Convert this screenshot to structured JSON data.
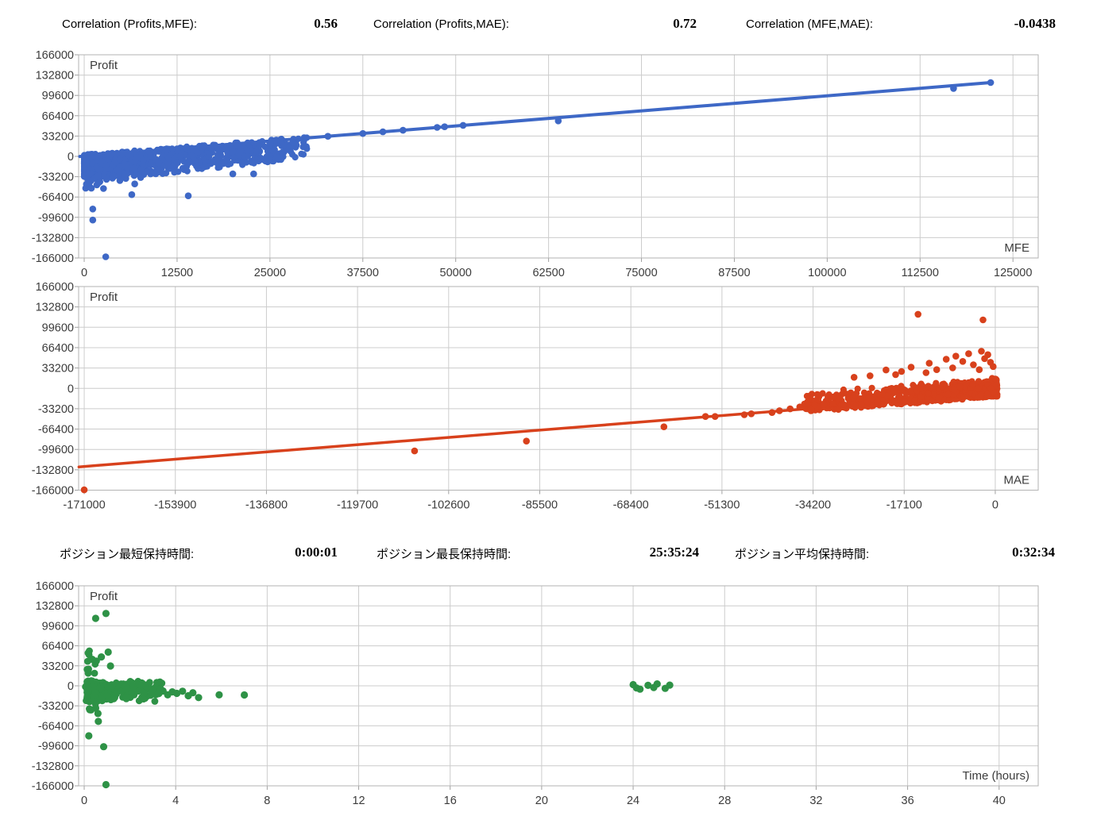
{
  "stats_correlation": {
    "items": [
      {
        "label": "Correlation (Profits,MFE):",
        "value": "0.56"
      },
      {
        "label": "Correlation (Profits,MAE):",
        "value": "0.72"
      },
      {
        "label": "Correlation (MFE,MAE):",
        "value": "-0.0438"
      }
    ]
  },
  "stats_holding_time": {
    "items": [
      {
        "label": "ポジション最短保持時間:",
        "value": "0:00:01"
      },
      {
        "label": "ポジション最長保持時間:",
        "value": "25:35:24"
      },
      {
        "label": "ポジション平均保持時間:",
        "value": "0:32:34"
      }
    ]
  },
  "chart_data": [
    {
      "type": "scatter",
      "series_label": "Profit",
      "axis_label": "MFE",
      "color": "#3E68C6",
      "grid_color": "#cccccc",
      "border_color": "#b3b3b3",
      "tick_color": "#a0a0a0",
      "label_color": "#3c3c3c",
      "x_ticks": [
        0,
        12500,
        25000,
        37500,
        50000,
        62500,
        75000,
        87500,
        100000,
        112500,
        125000
      ],
      "y_ticks": [
        166000,
        132800,
        99600,
        66400,
        33200,
        0,
        -33200,
        -66400,
        -99600,
        -132800,
        -166000
      ],
      "xlim": [
        -750,
        128400
      ],
      "ylim": [
        -166000,
        166000
      ],
      "trend": {
        "x1": -600,
        "y1": -100,
        "x2": 122000,
        "y2": 120600,
        "width": 4
      },
      "cluster": [
        {
          "gen": "wedge_pos",
          "count": 1000,
          "seed": 11,
          "xmax": 30000,
          "xpow": 2.3,
          "top_jitter": 2600,
          "spread_a": 46000,
          "spread_b": 0.45,
          "spread_min": 6000,
          "ypow": 1.3,
          "floor": -33200
        }
      ],
      "points": [
        [
          26400,
          26500
        ],
        [
          32800,
          32800
        ],
        [
          37500,
          37400
        ],
        [
          40200,
          40100
        ],
        [
          42900,
          42700
        ],
        [
          47500,
          47400
        ],
        [
          48500,
          48400
        ],
        [
          51000,
          50700
        ],
        [
          63800,
          58000
        ],
        [
          117000,
          111000
        ],
        [
          122000,
          120600
        ],
        [
          300,
          -45500
        ],
        [
          1700,
          -46500
        ],
        [
          200,
          -52000
        ],
        [
          960,
          -52000
        ],
        [
          2600,
          -52500
        ],
        [
          6400,
          -62500
        ],
        [
          14000,
          -64500
        ],
        [
          1150,
          -86000
        ],
        [
          1150,
          -104000
        ],
        [
          2900,
          -164000
        ],
        [
          20000,
          -28600
        ],
        [
          22800,
          -28600
        ],
        [
          6800,
          -45000
        ],
        [
          500,
          -38000
        ],
        [
          900,
          -40000
        ],
        [
          1400,
          -36500
        ],
        [
          2100,
          -41500
        ],
        [
          3000,
          -37500
        ],
        [
          3800,
          -35500
        ],
        [
          4800,
          -39500
        ],
        [
          650,
          -44000
        ],
        [
          1900,
          -43500
        ],
        [
          5600,
          -36000
        ],
        [
          7600,
          -34500
        ]
      ],
      "point_radius": 4.3
    },
    {
      "type": "scatter",
      "series_label": "Profit",
      "axis_label": "MAE",
      "color": "#D8411C",
      "grid_color": "#cccccc",
      "border_color": "#b3b3b3",
      "tick_color": "#a0a0a0",
      "label_color": "#3c3c3c",
      "x_ticks": [
        -171000,
        -153900,
        -136800,
        -119700,
        -102600,
        -85500,
        -68400,
        -51300,
        -34200,
        -17100,
        0
      ],
      "y_ticks": [
        166000,
        132800,
        99600,
        66400,
        33200,
        0,
        -33200,
        -66400,
        -99600,
        -132800,
        -166000
      ],
      "xlim": [
        -172050,
        8060
      ],
      "ylim": [
        -166000,
        166000
      ],
      "trend": {
        "x1": -172000,
        "y1": -128100,
        "x2": 300,
        "y2": -8600,
        "width": 3.5
      },
      "cluster": [
        {
          "gen": "wedge_neg",
          "count": 850,
          "seed": 22,
          "xspan": 36000,
          "xpow": 2.0,
          "up": 27000,
          "uppow": 2.2,
          "down": 5500,
          "xjitter": 500
        }
      ],
      "points": [
        [
          -171000,
          -165500
        ],
        [
          -109000,
          -102000
        ],
        [
          -88000,
          -86000
        ],
        [
          -62200,
          -62700
        ],
        [
          -54400,
          -45900
        ],
        [
          -52600,
          -45900
        ],
        [
          -47100,
          -43000
        ],
        [
          -45800,
          -41500
        ],
        [
          -41900,
          -39400
        ],
        [
          -36700,
          -30400
        ],
        [
          -33900,
          -26900
        ],
        [
          -32200,
          -26400
        ],
        [
          -14500,
          120800
        ],
        [
          -2300,
          111700
        ],
        [
          -20500,
          30000
        ],
        [
          -17600,
          27500
        ],
        [
          -15800,
          34500
        ],
        [
          -13000,
          25500
        ],
        [
          -12400,
          41000
        ],
        [
          -11000,
          30500
        ],
        [
          -9200,
          47500
        ],
        [
          -8000,
          33500
        ],
        [
          -7400,
          52500
        ],
        [
          -6100,
          44000
        ],
        [
          -5000,
          56500
        ],
        [
          -4100,
          38500
        ],
        [
          -3000,
          30500
        ],
        [
          -2600,
          60500
        ],
        [
          -2000,
          48500
        ],
        [
          -1400,
          55000
        ],
        [
          -900,
          42500
        ],
        [
          -400,
          35500
        ],
        [
          -18700,
          22500
        ],
        [
          -23500,
          20500
        ],
        [
          -26500,
          18000
        ],
        [
          -38500,
          -33500
        ],
        [
          -40500,
          -36500
        ]
      ],
      "point_radius": 4.3
    },
    {
      "type": "scatter",
      "series_label": "Profit",
      "axis_label": "Time (hours)",
      "color": "#2E9246",
      "grid_color": "#cccccc",
      "border_color": "#b3b3b3",
      "tick_color": "#a0a0a0",
      "label_color": "#3c3c3c",
      "x_ticks": [
        0,
        4,
        8,
        12,
        16,
        20,
        24,
        28,
        32,
        36,
        40
      ],
      "y_ticks": [
        166000,
        132800,
        99600,
        66400,
        33200,
        0,
        -33200,
        -66400,
        -99600,
        -132800,
        -166000
      ],
      "xlim": [
        -0.243,
        41.71
      ],
      "ylim": [
        -166000,
        166000
      ],
      "trend": null,
      "cluster": [
        {
          "gen": "blob",
          "count": 280,
          "seed": 33,
          "x0": 0.12,
          "xspan": 3.3,
          "xpow": 2.0,
          "ytop": 9000,
          "ydown": 27000,
          "ypow": 1.35
        },
        {
          "gen": "column",
          "count": 30,
          "seed": 44,
          "x0": 0.05,
          "xspan": 0.5,
          "ymax": 58000,
          "ymin": -44000
        }
      ],
      "points": [
        [
          0.5,
          112000
        ],
        [
          0.95,
          120000
        ],
        [
          0.35,
          44000
        ],
        [
          0.75,
          48000
        ],
        [
          1.05,
          56000
        ],
        [
          1.15,
          33000
        ],
        [
          0.6,
          -46000
        ],
        [
          0.62,
          -59000
        ],
        [
          0.2,
          -83000
        ],
        [
          0.85,
          -101000
        ],
        [
          0.95,
          -164000
        ],
        [
          0.3,
          -40000
        ],
        [
          0.5,
          -37000
        ],
        [
          3.0,
          -9000
        ],
        [
          3.25,
          -13000
        ],
        [
          3.45,
          -8500
        ],
        [
          3.65,
          -15000
        ],
        [
          3.85,
          -10000
        ],
        [
          4.05,
          -12500
        ],
        [
          4.3,
          -9000
        ],
        [
          4.55,
          -16500
        ],
        [
          4.75,
          -11500
        ],
        [
          5.0,
          -19500
        ],
        [
          5.9,
          -15000
        ],
        [
          7.0,
          -15200
        ],
        [
          24.0,
          2000
        ],
        [
          24.15,
          -3500
        ],
        [
          24.3,
          -5500
        ],
        [
          24.65,
          800
        ],
        [
          24.9,
          -2800
        ],
        [
          25.05,
          3200
        ],
        [
          25.4,
          -4200
        ],
        [
          25.6,
          1200
        ]
      ],
      "point_radius": 4.6
    }
  ]
}
